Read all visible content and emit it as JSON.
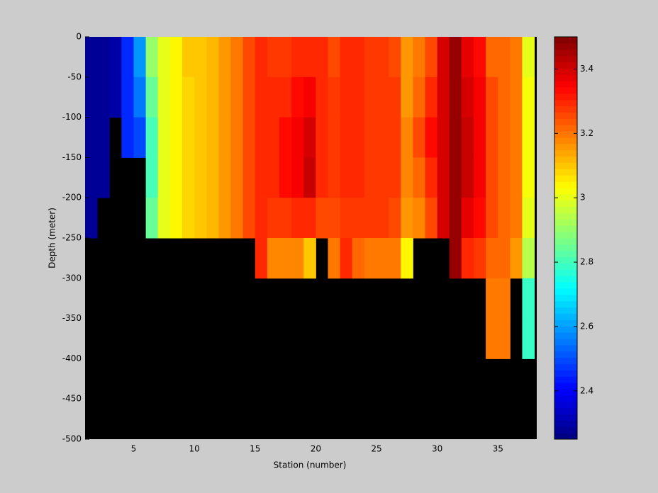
{
  "chart_data": {
    "type": "heatmap",
    "xlabel": "Station (number)",
    "ylabel": "Depth (meter)",
    "x_edges": [
      1,
      2,
      3,
      4,
      5,
      6,
      7,
      8,
      9,
      10,
      11,
      12,
      13,
      14,
      15,
      16,
      17,
      18,
      19,
      20,
      21,
      22,
      23,
      24,
      25,
      26,
      27,
      28,
      29,
      30,
      31,
      32,
      33,
      34,
      35,
      36,
      37,
      38
    ],
    "y_edges": [
      0,
      -50,
      -100,
      -150,
      -200,
      -250,
      -300,
      -350,
      -400
    ],
    "values": [
      [
        2.27,
        2.27,
        2.3,
        2.45,
        2.6,
        2.9,
        3.0,
        3.05,
        3.1,
        3.1,
        3.12,
        3.15,
        3.2,
        3.25,
        3.3,
        3.28,
        3.28,
        3.3,
        3.3,
        3.3,
        3.25,
        3.3,
        3.3,
        3.28,
        3.28,
        3.25,
        3.15,
        3.2,
        3.25,
        3.4,
        3.48,
        3.38,
        3.33,
        3.22,
        3.22,
        3.2,
        3.0
      ],
      [
        2.27,
        2.27,
        2.3,
        2.45,
        2.55,
        2.85,
        3.0,
        3.05,
        3.08,
        3.1,
        3.12,
        3.15,
        3.2,
        3.25,
        3.3,
        3.3,
        3.3,
        3.33,
        3.35,
        3.3,
        3.27,
        3.3,
        3.3,
        3.28,
        3.28,
        3.27,
        3.15,
        3.22,
        3.3,
        3.4,
        3.48,
        3.4,
        3.35,
        3.25,
        3.22,
        3.2,
        3.02
      ],
      [
        2.27,
        2.27,
        null,
        2.45,
        2.5,
        2.8,
        3.0,
        3.05,
        3.08,
        3.1,
        3.12,
        3.15,
        3.2,
        3.25,
        3.3,
        3.3,
        3.33,
        3.35,
        3.4,
        3.3,
        3.27,
        3.3,
        3.3,
        3.28,
        3.28,
        3.27,
        3.18,
        3.25,
        3.33,
        3.4,
        3.48,
        3.42,
        3.35,
        3.25,
        3.22,
        3.2,
        3.02
      ],
      [
        2.27,
        2.27,
        null,
        null,
        null,
        2.8,
        3.0,
        3.05,
        3.08,
        3.1,
        3.12,
        3.15,
        3.2,
        3.25,
        3.3,
        3.3,
        3.33,
        3.35,
        3.42,
        3.3,
        3.27,
        3.3,
        3.3,
        3.28,
        3.28,
        3.27,
        3.18,
        3.22,
        3.3,
        3.4,
        3.48,
        3.42,
        3.35,
        3.25,
        3.22,
        3.2,
        3.02
      ],
      [
        2.27,
        null,
        null,
        null,
        null,
        2.85,
        3.0,
        3.05,
        3.08,
        3.1,
        3.12,
        3.15,
        3.2,
        3.25,
        3.3,
        3.28,
        3.28,
        3.3,
        3.3,
        3.25,
        3.25,
        3.28,
        3.28,
        3.28,
        3.28,
        3.25,
        3.15,
        3.18,
        3.25,
        3.4,
        3.48,
        3.38,
        3.33,
        3.25,
        3.22,
        3.2,
        3.0
      ],
      [
        null,
        null,
        null,
        null,
        null,
        null,
        null,
        null,
        null,
        null,
        null,
        null,
        null,
        null,
        3.3,
        3.18,
        3.18,
        3.18,
        3.1,
        null,
        3.2,
        3.3,
        3.22,
        3.2,
        3.2,
        3.2,
        3.05,
        null,
        null,
        null,
        3.48,
        3.3,
        3.28,
        3.22,
        3.22,
        3.15,
        2.95
      ],
      [
        null,
        null,
        null,
        null,
        null,
        null,
        null,
        null,
        null,
        null,
        null,
        null,
        null,
        null,
        null,
        null,
        null,
        null,
        null,
        null,
        null,
        null,
        null,
        null,
        null,
        null,
        null,
        null,
        null,
        null,
        null,
        null,
        null,
        3.2,
        3.2,
        null,
        2.78
      ],
      [
        null,
        null,
        null,
        null,
        null,
        null,
        null,
        null,
        null,
        null,
        null,
        null,
        null,
        null,
        null,
        null,
        null,
        null,
        null,
        null,
        null,
        null,
        null,
        null,
        null,
        null,
        null,
        null,
        null,
        null,
        null,
        null,
        null,
        3.2,
        3.2,
        null,
        2.78
      ]
    ],
    "xlim": [
      1,
      38.2
    ],
    "ylim": [
      -500,
      0
    ],
    "xticks": [
      5,
      10,
      15,
      20,
      25,
      30,
      35
    ],
    "yticks": [
      0,
      -50,
      -100,
      -150,
      -200,
      -250,
      -300,
      -350,
      -400,
      -450,
      -500
    ],
    "colormap": "jet",
    "clim": [
      2.25,
      3.5
    ],
    "cticks": [
      2.4,
      2.6,
      2.8,
      3,
      3.2,
      3.4
    ],
    "axes_color": "#000000"
  }
}
